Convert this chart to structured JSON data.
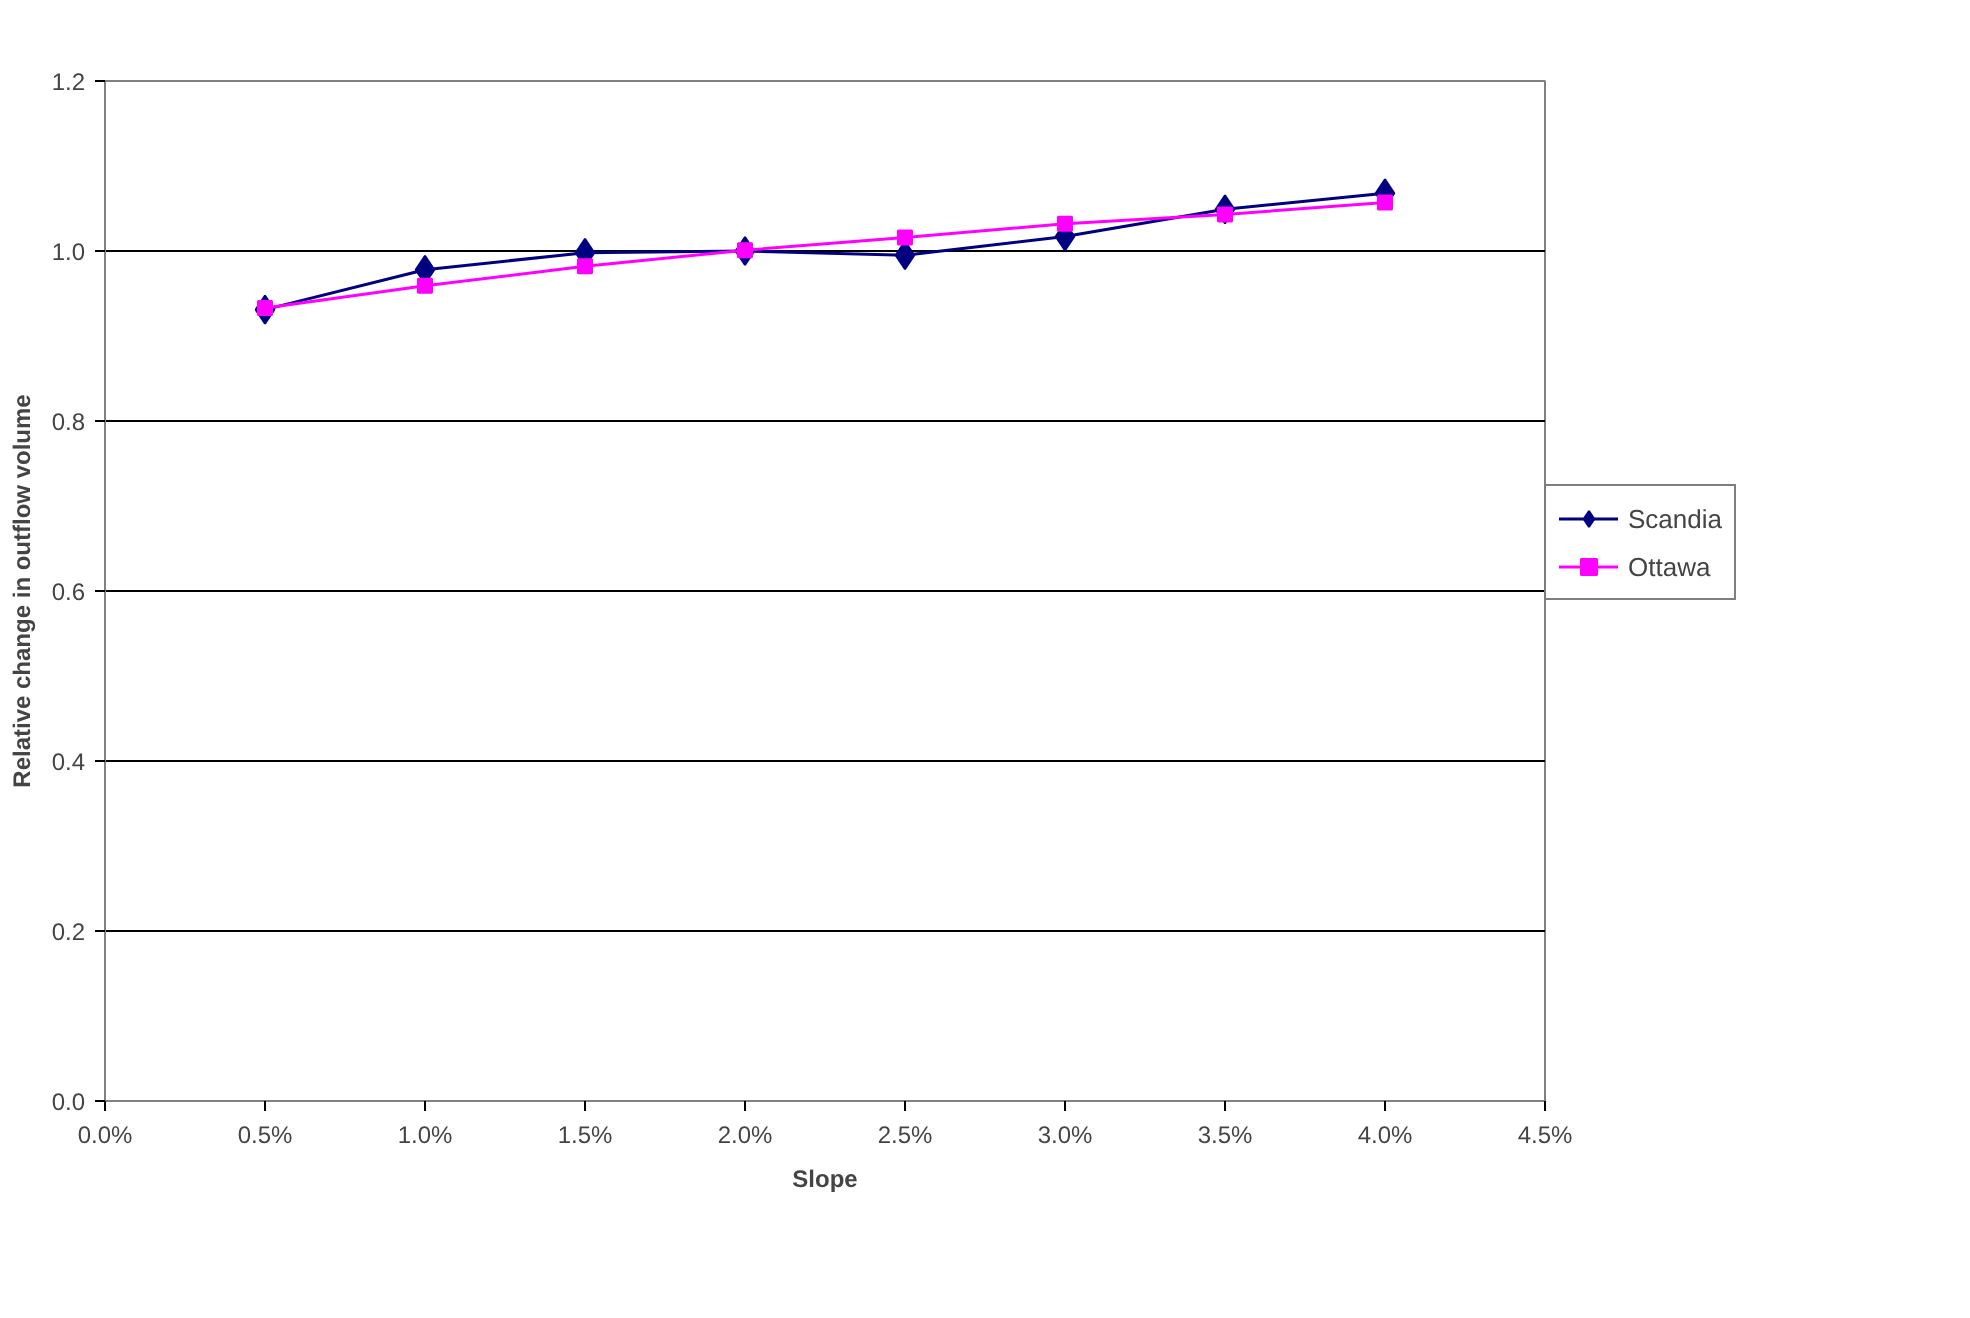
{
  "chart_data": {
    "type": "line",
    "xlabel": "Slope",
    "ylabel": "Relative change in outflow volume",
    "x": [
      0.5,
      1.0,
      1.5,
      2.0,
      2.5,
      3.0,
      3.5,
      4.0
    ],
    "series": [
      {
        "name": "Scandia",
        "color": "#000080",
        "marker": "diamond",
        "values": [
          0.931,
          0.978,
          0.998,
          1.0,
          0.995,
          1.017,
          1.049,
          1.068
        ]
      },
      {
        "name": "Ottawa",
        "color": "#ff00ff",
        "marker": "square",
        "values": [
          0.933,
          0.959,
          0.982,
          1.001,
          1.016,
          1.032,
          1.043,
          1.057
        ]
      }
    ],
    "xlim": [
      0,
      4.5
    ],
    "xticks": [
      {
        "value": 0,
        "label": "0.0%"
      },
      {
        "value": 0.5,
        "label": "0.5%"
      },
      {
        "value": 1.0,
        "label": "1.0%"
      },
      {
        "value": 1.5,
        "label": "1.5%"
      },
      {
        "value": 2.0,
        "label": "2.0%"
      },
      {
        "value": 2.5,
        "label": "2.5%"
      },
      {
        "value": 3.0,
        "label": "3.0%"
      },
      {
        "value": 3.5,
        "label": "3.5%"
      },
      {
        "value": 4.0,
        "label": "4.0%"
      },
      {
        "value": 4.5,
        "label": "4.5%"
      }
    ],
    "ylim": [
      0,
      1.2
    ],
    "yticks": [
      {
        "value": 0,
        "label": "0.0"
      },
      {
        "value": 0.2,
        "label": "0.2"
      },
      {
        "value": 0.4,
        "label": "0.4"
      },
      {
        "value": 0.6,
        "label": "0.6"
      },
      {
        "value": 0.8,
        "label": "0.8"
      },
      {
        "value": 1.0,
        "label": "1.0"
      },
      {
        "value": 1.2,
        "label": "1.2"
      }
    ],
    "grid": "y",
    "legend": "right",
    "line_style": "solid"
  }
}
